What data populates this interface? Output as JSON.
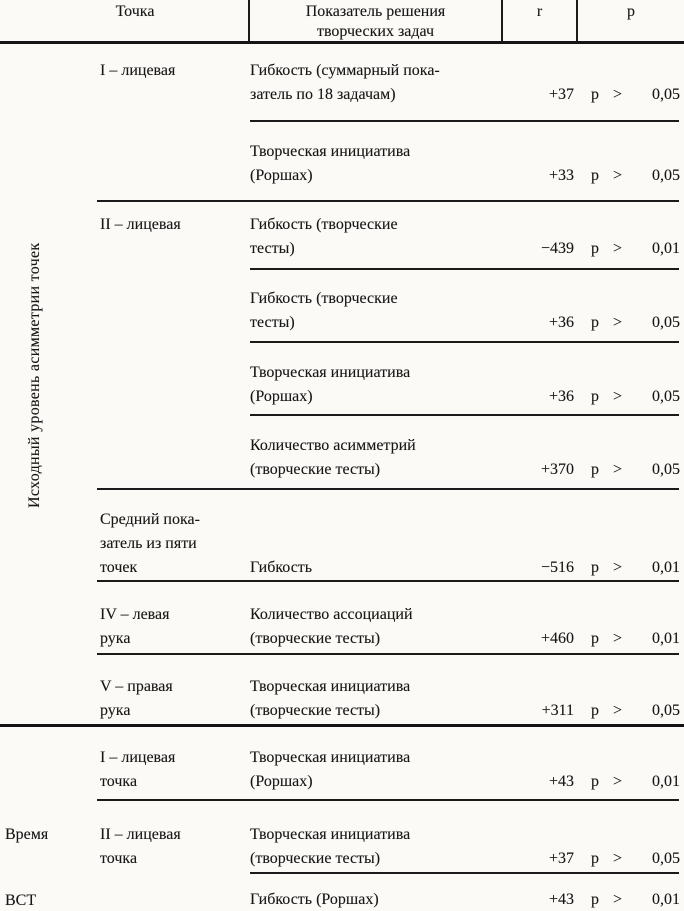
{
  "header": {
    "point": "Точка",
    "indicator": "Показатель решения творческих задач",
    "r": "r",
    "p": "p"
  },
  "side_labels": {
    "asymmetry": "Исходный уровень асимметрии точек",
    "time": "Время",
    "vst": "ВСТ"
  },
  "rows": [
    {
      "point": "I – лицевая",
      "indicator": "Гибкость (суммарный пока-\nзатель по 18 задачам)",
      "r": "+37",
      "p_label": "p",
      "p_op": ">",
      "p_value": "0,05",
      "divider_after": "sub"
    },
    {
      "point": "",
      "indicator": "Творческая инициатива\n(Роршах)",
      "r": "+33",
      "p_label": "p",
      "p_op": ">",
      "p_value": "0,05",
      "divider_after": "group"
    },
    {
      "point": "II – лицевая",
      "indicator": "Гибкость (творческие\nтесты)",
      "r": "−439",
      "p_label": "p",
      "p_op": ">",
      "p_value": "0,01",
      "divider_after": "sub"
    },
    {
      "point": "",
      "indicator": "Гибкость (творческие\nтесты)",
      "r": "+36",
      "p_label": "p",
      "p_op": ">",
      "p_value": "0,05",
      "divider_after": "sub"
    },
    {
      "point": "",
      "indicator": "Творческая инициатива\n(Роршах)",
      "r": "+36",
      "p_label": "p",
      "p_op": ">",
      "p_value": "0,05",
      "divider_after": "sub"
    },
    {
      "point": "",
      "indicator": "Количество асимметрий\n(творческие тесты)",
      "r": "+370",
      "p_label": "p",
      "p_op": ">",
      "p_value": "0,05",
      "divider_after": "group"
    },
    {
      "point": "Средний пока-\nзатель из пяти\nточек",
      "indicator": "Гибкость",
      "r": "−516",
      "p_label": "p",
      "p_op": ">",
      "p_value": "0,01",
      "divider_after": "group"
    },
    {
      "point": "IV – левая\nрука",
      "indicator": "Количество ассоциаций\n(творческие тесты)",
      "r": "+460",
      "p_label": "p",
      "p_op": ">",
      "p_value": "0,01",
      "divider_after": "group"
    },
    {
      "point": "V – правая\nрука",
      "indicator": "Творческая инициатива\n(творческие тесты)",
      "r": "+311",
      "p_label": "p",
      "p_op": ">",
      "p_value": "0,05",
      "divider_after": "section"
    },
    {
      "point": "I – лицевая\nточка",
      "indicator": "Творческая инициатива\n(Роршах)",
      "r": "+43",
      "p_label": "p",
      "p_op": ">",
      "p_value": "0,01",
      "divider_after": "group"
    },
    {
      "point": "II – лицевая\nточка",
      "indicator": "Творческая инициатива\n(творческие тесты)",
      "r": "+37",
      "p_label": "p",
      "p_op": ">",
      "p_value": "0,05",
      "divider_after": "sub"
    },
    {
      "point": "",
      "indicator": "Гибкость (Роршах)",
      "r": "+43",
      "p_label": "p",
      "p_op": ">",
      "p_value": "0,01",
      "divider_after": "none"
    }
  ]
}
